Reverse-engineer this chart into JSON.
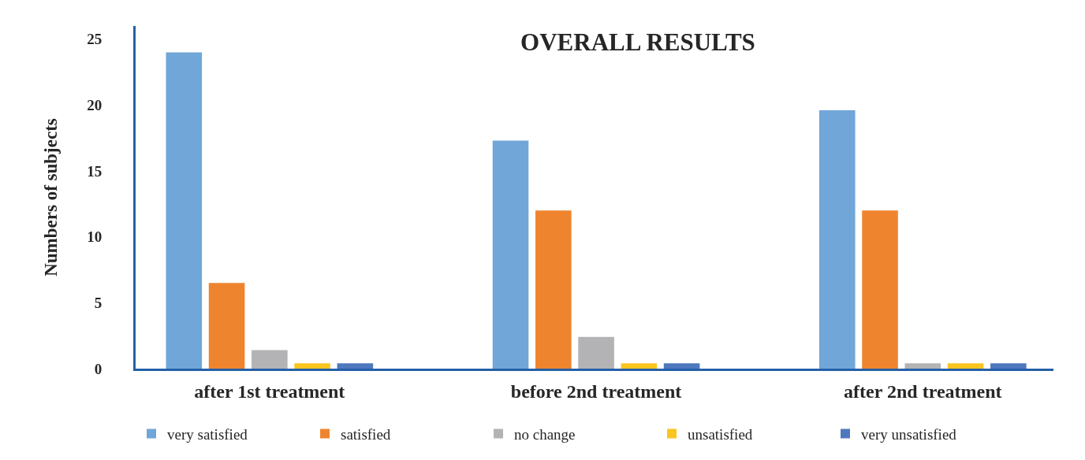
{
  "chart_data": {
    "type": "bar",
    "title": "OVERALL RESULTS",
    "ylabel": "Numbers of subjects",
    "categories": [
      "after 1st treatment",
      "before 2nd treatment",
      "after 2nd treatment"
    ],
    "series": [
      {
        "name": "very satisfied",
        "color": "#70a6d8",
        "values": [
          24,
          17.3,
          19.6
        ]
      },
      {
        "name": "satisfied",
        "color": "#ee852e",
        "values": [
          6.5,
          12,
          12
        ]
      },
      {
        "name": "no change",
        "color": "#b3b2b4",
        "values": [
          1.4,
          2.4,
          0.4
        ]
      },
      {
        "name": "unsatisfied",
        "color": "#fbc41f",
        "values": [
          0.4,
          0.4,
          0.4
        ]
      },
      {
        "name": "very unsatisfied",
        "color": "#4e78be",
        "values": [
          0.4,
          0.4,
          0.4
        ]
      }
    ],
    "ylim": [
      0,
      26
    ],
    "yticks": [
      0,
      5,
      10,
      15,
      20,
      25
    ],
    "grid": false,
    "legend": "bottom"
  }
}
